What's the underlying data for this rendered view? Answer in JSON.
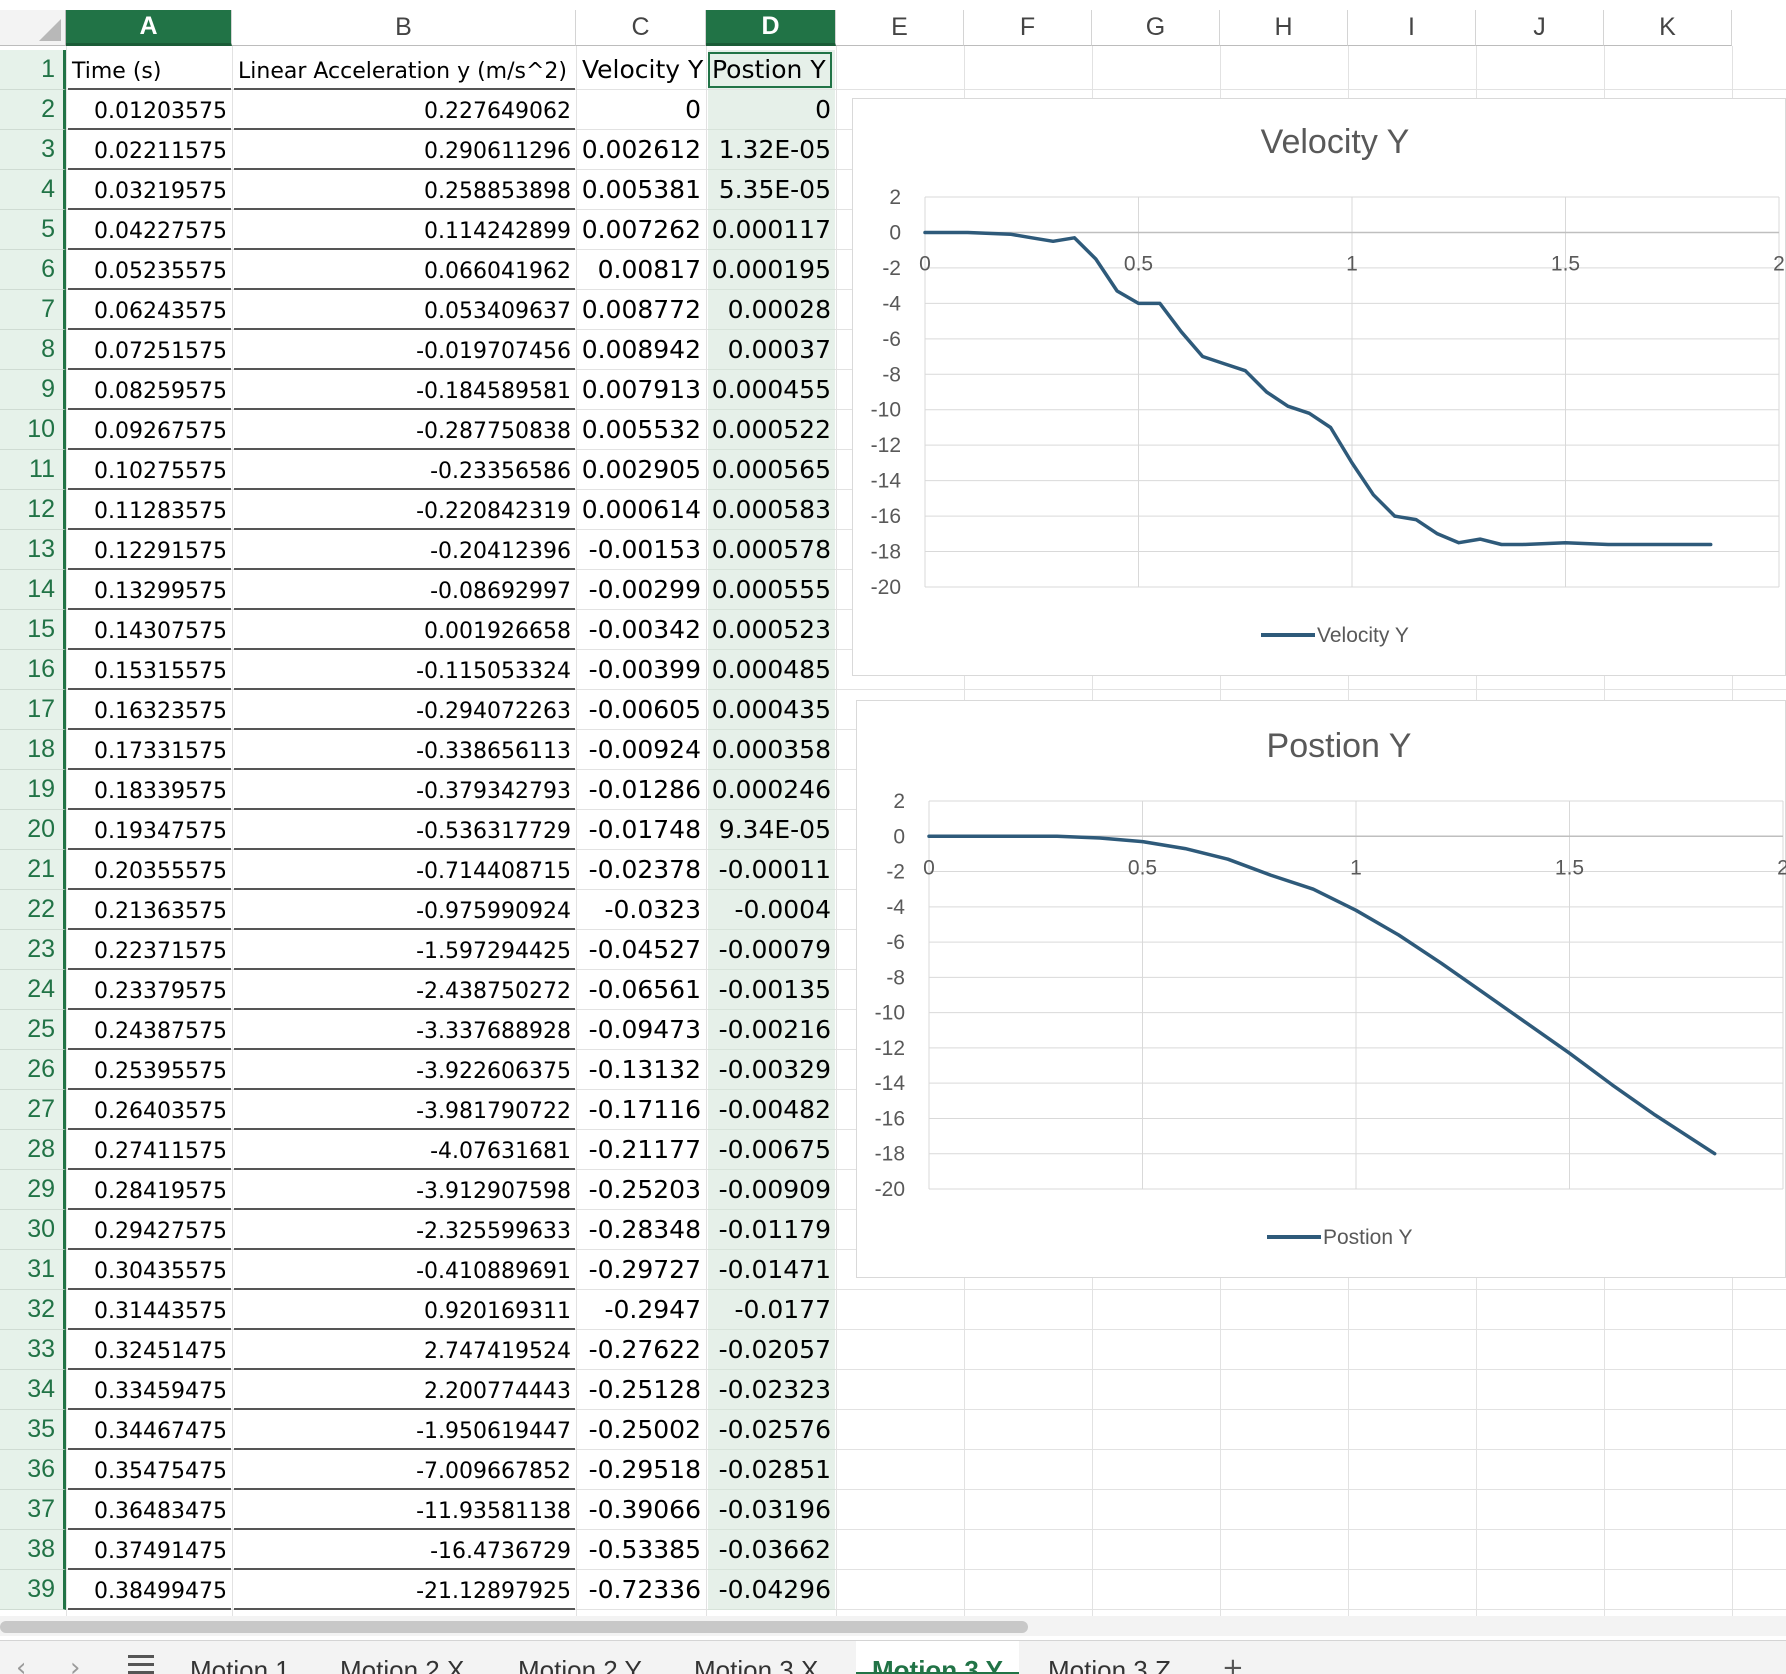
{
  "columns": [
    "A",
    "B",
    "C",
    "D",
    "E",
    "F",
    "G",
    "H",
    "I",
    "J",
    "K"
  ],
  "selected_column": "D",
  "header_row": {
    "A": "Time (s)",
    "B": "Linear Acceleration y (m/s^2)",
    "C": "Velocity Y",
    "D": "Postion Y"
  },
  "rows": [
    {
      "n": "2",
      "a": "0.01203575",
      "b": "0.227649062",
      "c": "0",
      "d": "0"
    },
    {
      "n": "3",
      "a": "0.02211575",
      "b": "0.290611296",
      "c": "0.002612",
      "d": "1.32E-05"
    },
    {
      "n": "4",
      "a": "0.03219575",
      "b": "0.258853898",
      "c": "0.005381",
      "d": "5.35E-05"
    },
    {
      "n": "5",
      "a": "0.04227575",
      "b": "0.114242899",
      "c": "0.007262",
      "d": "0.000117"
    },
    {
      "n": "6",
      "a": "0.05235575",
      "b": "0.066041962",
      "c": "0.00817",
      "d": "0.000195"
    },
    {
      "n": "7",
      "a": "0.06243575",
      "b": "0.053409637",
      "c": "0.008772",
      "d": "0.00028"
    },
    {
      "n": "8",
      "a": "0.07251575",
      "b": "-0.019707456",
      "c": "0.008942",
      "d": "0.00037"
    },
    {
      "n": "9",
      "a": "0.08259575",
      "b": "-0.184589581",
      "c": "0.007913",
      "d": "0.000455"
    },
    {
      "n": "10",
      "a": "0.09267575",
      "b": "-0.287750838",
      "c": "0.005532",
      "d": "0.000522"
    },
    {
      "n": "11",
      "a": "0.10275575",
      "b": "-0.23356586",
      "c": "0.002905",
      "d": "0.000565"
    },
    {
      "n": "12",
      "a": "0.11283575",
      "b": "-0.220842319",
      "c": "0.000614",
      "d": "0.000583"
    },
    {
      "n": "13",
      "a": "0.12291575",
      "b": "-0.20412396",
      "c": "-0.00153",
      "d": "0.000578"
    },
    {
      "n": "14",
      "a": "0.13299575",
      "b": "-0.08692997",
      "c": "-0.00299",
      "d": "0.000555"
    },
    {
      "n": "15",
      "a": "0.14307575",
      "b": "0.001926658",
      "c": "-0.00342",
      "d": "0.000523"
    },
    {
      "n": "16",
      "a": "0.15315575",
      "b": "-0.115053324",
      "c": "-0.00399",
      "d": "0.000485"
    },
    {
      "n": "17",
      "a": "0.16323575",
      "b": "-0.294072263",
      "c": "-0.00605",
      "d": "0.000435"
    },
    {
      "n": "18",
      "a": "0.17331575",
      "b": "-0.338656113",
      "c": "-0.00924",
      "d": "0.000358"
    },
    {
      "n": "19",
      "a": "0.18339575",
      "b": "-0.379342793",
      "c": "-0.01286",
      "d": "0.000246"
    },
    {
      "n": "20",
      "a": "0.19347575",
      "b": "-0.536317729",
      "c": "-0.01748",
      "d": "9.34E-05"
    },
    {
      "n": "21",
      "a": "0.20355575",
      "b": "-0.714408715",
      "c": "-0.02378",
      "d": "-0.00011"
    },
    {
      "n": "22",
      "a": "0.21363575",
      "b": "-0.975990924",
      "c": "-0.0323",
      "d": "-0.0004"
    },
    {
      "n": "23",
      "a": "0.22371575",
      "b": "-1.597294425",
      "c": "-0.04527",
      "d": "-0.00079"
    },
    {
      "n": "24",
      "a": "0.23379575",
      "b": "-2.438750272",
      "c": "-0.06561",
      "d": "-0.00135"
    },
    {
      "n": "25",
      "a": "0.24387575",
      "b": "-3.337688928",
      "c": "-0.09473",
      "d": "-0.00216"
    },
    {
      "n": "26",
      "a": "0.25395575",
      "b": "-3.922606375",
      "c": "-0.13132",
      "d": "-0.00329"
    },
    {
      "n": "27",
      "a": "0.26403575",
      "b": "-3.981790722",
      "c": "-0.17116",
      "d": "-0.00482"
    },
    {
      "n": "28",
      "a": "0.27411575",
      "b": "-4.07631681",
      "c": "-0.21177",
      "d": "-0.00675"
    },
    {
      "n": "29",
      "a": "0.28419575",
      "b": "-3.912907598",
      "c": "-0.25203",
      "d": "-0.00909"
    },
    {
      "n": "30",
      "a": "0.29427575",
      "b": "-2.325599633",
      "c": "-0.28348",
      "d": "-0.01179"
    },
    {
      "n": "31",
      "a": "0.30435575",
      "b": "-0.410889691",
      "c": "-0.29727",
      "d": "-0.01471"
    },
    {
      "n": "32",
      "a": "0.31443575",
      "b": "0.920169311",
      "c": "-0.2947",
      "d": "-0.0177"
    },
    {
      "n": "33",
      "a": "0.32451475",
      "b": "2.747419524",
      "c": "-0.27622",
      "d": "-0.02057"
    },
    {
      "n": "34",
      "a": "0.33459475",
      "b": "2.200774443",
      "c": "-0.25128",
      "d": "-0.02323"
    },
    {
      "n": "35",
      "a": "0.34467475",
      "b": "-1.950619447",
      "c": "-0.25002",
      "d": "-0.02576"
    },
    {
      "n": "36",
      "a": "0.35475475",
      "b": "-7.009667852",
      "c": "-0.29518",
      "d": "-0.02851"
    },
    {
      "n": "37",
      "a": "0.36483475",
      "b": "-11.93581138",
      "c": "-0.39066",
      "d": "-0.03196"
    },
    {
      "n": "38",
      "a": "0.37491475",
      "b": "-16.4736729",
      "c": "-0.53385",
      "d": "-0.03662"
    },
    {
      "n": "39",
      "a": "0.38499475",
      "b": "-21.12897925",
      "c": "-0.72336",
      "d": "-0.04296"
    }
  ],
  "sheet_tabs": [
    "Motion 1",
    "Motion 2 X",
    "Motion 2 Y",
    "Motion 3 X",
    "Motion 3 Y",
    "Motion 3 Z"
  ],
  "active_tab": "Motion 3 Y",
  "add_sheet_label": "+",
  "colors": {
    "accent": "#217346",
    "series": "#2e5a7a",
    "row_header_bg": "#e6f2ea"
  },
  "chart_data": [
    {
      "type": "line",
      "title": "Velocity Y",
      "xlabel": "",
      "ylabel": "",
      "xlim": [
        0,
        2
      ],
      "ylim": [
        -20,
        2
      ],
      "x_ticks": [
        "0",
        "0.5",
        "1",
        "1.5",
        "2"
      ],
      "y_ticks": [
        "2",
        "0",
        "-2",
        "-4",
        "-6",
        "-8",
        "-10",
        "-12",
        "-14",
        "-16",
        "-18",
        "-20"
      ],
      "legend_position": "bottom",
      "grid": true,
      "series": [
        {
          "name": "Velocity Y",
          "x": [
            0,
            0.1,
            0.2,
            0.25,
            0.3,
            0.35,
            0.4,
            0.45,
            0.5,
            0.55,
            0.6,
            0.65,
            0.7,
            0.75,
            0.8,
            0.85,
            0.9,
            0.95,
            1.0,
            1.05,
            1.1,
            1.15,
            1.2,
            1.25,
            1.3,
            1.35,
            1.4,
            1.5,
            1.6,
            1.7,
            1.8,
            1.84
          ],
          "y": [
            0,
            0,
            -0.1,
            -0.3,
            -0.5,
            -0.3,
            -1.5,
            -3.3,
            -4.0,
            -4.0,
            -5.6,
            -7.0,
            -7.4,
            -7.8,
            -9.0,
            -9.8,
            -10.2,
            -11.0,
            -13.0,
            -14.8,
            -16.0,
            -16.2,
            -17.0,
            -17.5,
            -17.3,
            -17.6,
            -17.6,
            -17.5,
            -17.6,
            -17.6,
            -17.6,
            -17.6
          ]
        }
      ]
    },
    {
      "type": "line",
      "title": "Postion Y",
      "xlabel": "",
      "ylabel": "",
      "xlim": [
        0,
        2
      ],
      "ylim": [
        -20,
        2
      ],
      "x_ticks": [
        "0",
        "0.5",
        "1",
        "1.5",
        "2"
      ],
      "y_ticks": [
        "2",
        "0",
        "-2",
        "-4",
        "-6",
        "-8",
        "-10",
        "-12",
        "-14",
        "-16",
        "-18",
        "-20"
      ],
      "legend_position": "bottom",
      "grid": true,
      "series": [
        {
          "name": "Postion Y",
          "x": [
            0,
            0.1,
            0.2,
            0.3,
            0.4,
            0.5,
            0.6,
            0.7,
            0.8,
            0.9,
            1.0,
            1.1,
            1.2,
            1.3,
            1.4,
            1.5,
            1.6,
            1.7,
            1.84
          ],
          "y": [
            0,
            0,
            0,
            0,
            -0.1,
            -0.3,
            -0.7,
            -1.3,
            -2.2,
            -3.0,
            -4.2,
            -5.6,
            -7.2,
            -8.9,
            -10.6,
            -12.3,
            -14.1,
            -15.8,
            -18.0
          ]
        }
      ]
    }
  ]
}
